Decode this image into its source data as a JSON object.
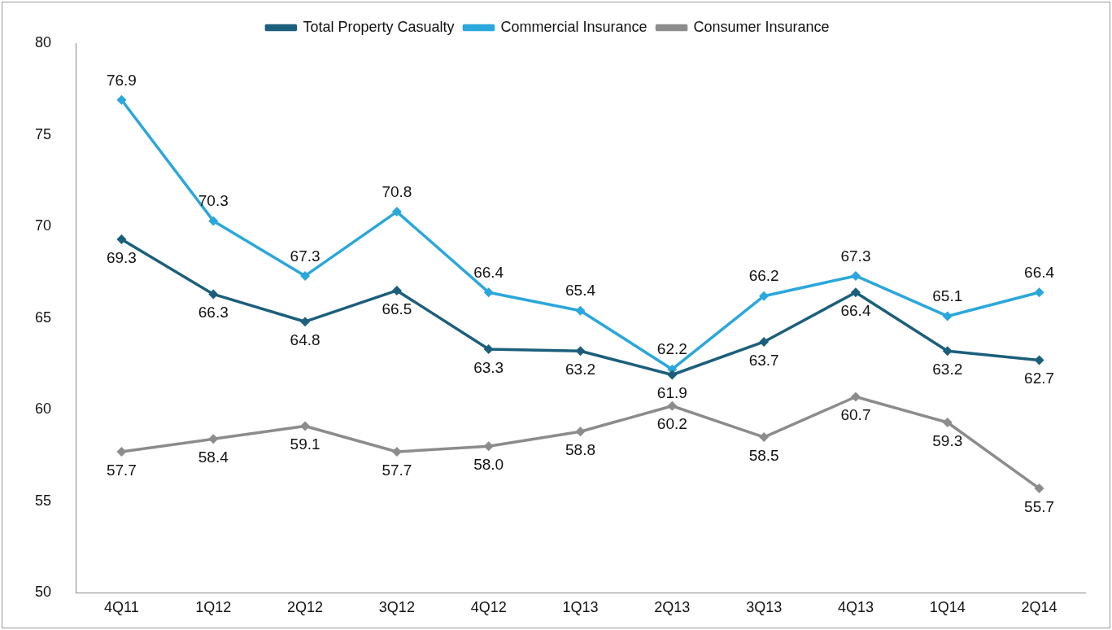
{
  "chart_data": {
    "type": "line",
    "categories": [
      "4Q11",
      "1Q12",
      "2Q12",
      "3Q12",
      "4Q12",
      "1Q13",
      "2Q13",
      "3Q13",
      "4Q13",
      "1Q14",
      "2Q14"
    ],
    "series": [
      {
        "name": "Total Property Casualty",
        "color": "#1b5f7c",
        "values": [
          69.3,
          66.3,
          64.8,
          66.5,
          63.3,
          63.2,
          61.9,
          63.7,
          66.4,
          63.2,
          62.7
        ],
        "value_labels": [
          "69.3",
          "66.3",
          "64.8",
          "66.5",
          "63.3",
          "63.2",
          "61.9",
          "63.7",
          "66.4",
          "63.2",
          "62.7"
        ]
      },
      {
        "name": "Commercial Insurance",
        "color": "#2aa7dc",
        "values": [
          76.9,
          70.3,
          67.3,
          70.8,
          66.4,
          65.4,
          62.2,
          66.2,
          67.3,
          65.1,
          66.4
        ],
        "value_labels": [
          "76.9",
          "70.3",
          "67.3",
          "70.8",
          "66.4",
          "65.4",
          "62.2",
          "66.2",
          "67.3",
          "65.1",
          "66.4"
        ]
      },
      {
        "name": "Consumer Insurance",
        "color": "#8c8c8c",
        "values": [
          57.7,
          58.4,
          59.1,
          57.7,
          58.0,
          58.8,
          60.2,
          58.5,
          60.7,
          59.3,
          55.7
        ],
        "value_labels": [
          "57.7",
          "58.4",
          "59.1",
          "57.7",
          "58.0",
          "58.8",
          "60.2",
          "58.5",
          "60.7",
          "59.3",
          "55.7"
        ]
      }
    ],
    "ylim": [
      50,
      80
    ],
    "yticks": [
      50,
      55,
      60,
      65,
      70,
      75,
      80
    ],
    "grid": false,
    "legend": "top",
    "marker": "diamond",
    "line_style": "solid"
  }
}
